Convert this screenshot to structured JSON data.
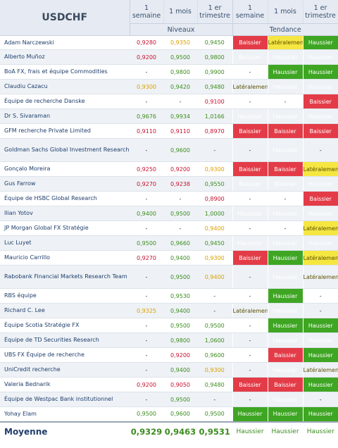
{
  "header": {
    "symbol": "USDCHF",
    "periods_levels": [
      "1 semaine",
      "1 mois",
      "1 er trimestre"
    ],
    "periods_trend": [
      "1 semaine",
      "1 mois",
      "1 er trimestre"
    ],
    "levels_label": "Niveaux",
    "trend_label": "Tendance"
  },
  "rows": [
    {
      "name": "Adam Narczewski",
      "levels": [
        {
          "v": "0,9280",
          "c": "red"
        },
        {
          "v": "0,9350",
          "c": "orange"
        },
        {
          "v": "0,9450",
          "c": "green"
        }
      ],
      "trend": [
        "Baissier",
        "Latéralement",
        "Haussier"
      ]
    },
    {
      "name": "Alberto Muñoz",
      "levels": [
        {
          "v": "0,9200",
          "c": "red"
        },
        {
          "v": "0,9500",
          "c": "green"
        },
        {
          "v": "0,9800",
          "c": "green"
        }
      ],
      "trend": [
        "Baissier",
        "Haussier",
        "Haussier"
      ]
    },
    {
      "name": "BoA FX, frais et équipe Commodities",
      "levels": [
        {
          "v": "-",
          "c": "black"
        },
        {
          "v": "0,9800",
          "c": "green"
        },
        {
          "v": "0,9900",
          "c": "green"
        }
      ],
      "trend": [
        "-",
        "Haussier",
        "Haussier"
      ]
    },
    {
      "name": "Claudiu Cazacu",
      "levels": [
        {
          "v": "0,9300",
          "c": "orange"
        },
        {
          "v": "0,9420",
          "c": "green"
        },
        {
          "v": "0,9480",
          "c": "green"
        }
      ],
      "trend": [
        "Latéralement",
        "Haussier",
        "Haussier"
      ]
    },
    {
      "name": "Équipe de recherche Danske",
      "levels": [
        {
          "v": "-",
          "c": "black"
        },
        {
          "v": "-",
          "c": "black"
        },
        {
          "v": "0,9100",
          "c": "red"
        }
      ],
      "trend": [
        "-",
        "-",
        "Baissier"
      ]
    },
    {
      "name": "Dr S. Sivaraman",
      "levels": [
        {
          "v": "0,9676",
          "c": "green"
        },
        {
          "v": "0,9934",
          "c": "green"
        },
        {
          "v": "1,0166",
          "c": "green"
        }
      ],
      "trend": [
        "Haussier",
        "Haussier",
        "Haussier"
      ]
    },
    {
      "name": "GFM recherche Private Limited",
      "levels": [
        {
          "v": "0,9110",
          "c": "red"
        },
        {
          "v": "0,9110",
          "c": "red"
        },
        {
          "v": "0,8970",
          "c": "red"
        }
      ],
      "trend": [
        "Baissier",
        "Baissier",
        "Baissier"
      ]
    },
    {
      "name": "Goldman Sachs Global Investment Research",
      "levels": [
        {
          "v": "-",
          "c": "black"
        },
        {
          "v": "0,9600",
          "c": "green"
        },
        {
          "v": "-",
          "c": "black"
        }
      ],
      "trend": [
        "-",
        "Haussier",
        "-"
      ]
    },
    {
      "name": "Gonçalo Moreira",
      "levels": [
        {
          "v": "0,9250",
          "c": "red"
        },
        {
          "v": "0,9200",
          "c": "red"
        },
        {
          "v": "0,9300",
          "c": "orange"
        }
      ],
      "trend": [
        "Baissier",
        "Baissier",
        "Latéralement"
      ]
    },
    {
      "name": "Gus Farrow",
      "levels": [
        {
          "v": "0,9270",
          "c": "red"
        },
        {
          "v": "0,9238",
          "c": "red"
        },
        {
          "v": "0,9550",
          "c": "green"
        }
      ],
      "trend": [
        "Baissier",
        "Baissier",
        "Haussier"
      ]
    },
    {
      "name": "Équipe de HSBC Global Research",
      "levels": [
        {
          "v": "-",
          "c": "black"
        },
        {
          "v": "-",
          "c": "black"
        },
        {
          "v": "0,8900",
          "c": "red"
        }
      ],
      "trend": [
        "-",
        "-",
        "Baissier"
      ]
    },
    {
      "name": "Ilian Yotov",
      "levels": [
        {
          "v": "0,9400",
          "c": "green"
        },
        {
          "v": "0,9500",
          "c": "green"
        },
        {
          "v": "1,0000",
          "c": "green"
        }
      ],
      "trend": [
        "Haussier",
        "Haussier",
        "Haussier"
      ]
    },
    {
      "name": "JP Morgan Global FX Stratégie",
      "levels": [
        {
          "v": "-",
          "c": "black"
        },
        {
          "v": "-",
          "c": "black"
        },
        {
          "v": "0,9400",
          "c": "orange"
        }
      ],
      "trend": [
        "-",
        "-",
        "Latéralement"
      ]
    },
    {
      "name": "Luc Luyet",
      "levels": [
        {
          "v": "0,9500",
          "c": "green"
        },
        {
          "v": "0,9660",
          "c": "green"
        },
        {
          "v": "0,9450",
          "c": "green"
        }
      ],
      "trend": [
        "Haussier",
        "Haussier",
        "Haussier"
      ]
    },
    {
      "name": "Mauricio Carrillo",
      "levels": [
        {
          "v": "0,9270",
          "c": "red"
        },
        {
          "v": "0,9400",
          "c": "green"
        },
        {
          "v": "0,9300",
          "c": "orange"
        }
      ],
      "trend": [
        "Baissier",
        "Haussier",
        "Latéralement"
      ]
    },
    {
      "name": "Rabobank Financial Markets Research Team",
      "levels": [
        {
          "v": "-",
          "c": "black"
        },
        {
          "v": "0,9500",
          "c": "green"
        },
        {
          "v": "0,9400",
          "c": "orange"
        }
      ],
      "trend": [
        "-",
        "Haussier",
        "Latéralement"
      ]
    },
    {
      "name": "RBS équipe",
      "levels": [
        {
          "v": "-",
          "c": "black"
        },
        {
          "v": "0,9530",
          "c": "green"
        },
        {
          "v": "-",
          "c": "black"
        }
      ],
      "trend": [
        "-",
        "Haussier",
        "-"
      ]
    },
    {
      "name": "Richard C. Lee",
      "levels": [
        {
          "v": "0,9325",
          "c": "orange"
        },
        {
          "v": "0,9400",
          "c": "green"
        },
        {
          "v": "-",
          "c": "black"
        }
      ],
      "trend": [
        "Latéralement",
        "Haussier",
        "-"
      ]
    },
    {
      "name": "Équipe Scotia Stratégie FX",
      "levels": [
        {
          "v": "-",
          "c": "black"
        },
        {
          "v": "0,9500",
          "c": "green"
        },
        {
          "v": "0,9500",
          "c": "green"
        }
      ],
      "trend": [
        "-",
        "Haussier",
        "Haussier"
      ]
    },
    {
      "name": "Équipe de TD Securities Research",
      "levels": [
        {
          "v": "-",
          "c": "black"
        },
        {
          "v": "0,9800",
          "c": "green"
        },
        {
          "v": "1,0600",
          "c": "green"
        }
      ],
      "trend": [
        "-",
        "Haussier",
        "Haussier"
      ]
    },
    {
      "name": "UBS FX Équipe de recherche",
      "levels": [
        {
          "v": "-",
          "c": "black"
        },
        {
          "v": "0,9200",
          "c": "red"
        },
        {
          "v": "0,9600",
          "c": "green"
        }
      ],
      "trend": [
        "-",
        "Baissier",
        "Haussier"
      ]
    },
    {
      "name": "UniCredit recherche",
      "levels": [
        {
          "v": "-",
          "c": "black"
        },
        {
          "v": "0,9400",
          "c": "green"
        },
        {
          "v": "0,9300",
          "c": "orange"
        }
      ],
      "trend": [
        "-",
        "Haussier",
        "Latéralement"
      ]
    },
    {
      "name": "Valeria Bednarik",
      "levels": [
        {
          "v": "0,9200",
          "c": "red"
        },
        {
          "v": "0,9050",
          "c": "red"
        },
        {
          "v": "0,9480",
          "c": "green"
        }
      ],
      "trend": [
        "Baissier",
        "Baissier",
        "Haussier"
      ]
    },
    {
      "name": "Équipe de Westpac Bank institutionnel",
      "levels": [
        {
          "v": "-",
          "c": "black"
        },
        {
          "v": "0,9500",
          "c": "green"
        },
        {
          "v": "-",
          "c": "black"
        }
      ],
      "trend": [
        "-",
        "Haussier",
        "-"
      ]
    },
    {
      "name": "Yohay Elam",
      "levels": [
        {
          "v": "0,9500",
          "c": "green"
        },
        {
          "v": "0,9600",
          "c": "green"
        },
        {
          "v": "0,9500",
          "c": "green"
        }
      ],
      "trend": [
        "Haussier",
        "Haussier",
        "Haussier"
      ]
    }
  ],
  "average": {
    "label": "Moyenne",
    "levels": [
      "0,9329",
      "0,9463",
      "0,9531"
    ],
    "trend": [
      "Haussier",
      "Haussier",
      "Haussier"
    ]
  },
  "colors": {
    "bearish": "#e33c48",
    "bullish": "#3ea623",
    "sideways": "#f5e642",
    "header_bg": "#e6eaf2"
  }
}
